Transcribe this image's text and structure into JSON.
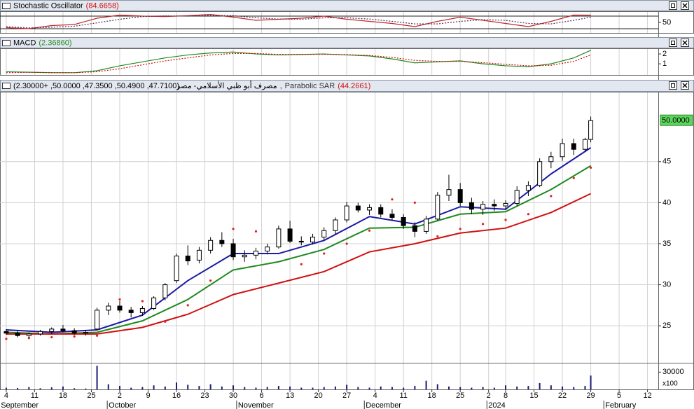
{
  "chart_data": [
    {
      "type": "line",
      "title": "Stochastic Oscillator",
      "value_label": "(84.6658)",
      "xlim": [
        -1.1,
        114.9
      ],
      "ylim": [
        0,
        100
      ],
      "yticks": [
        50
      ],
      "levels": [
        20,
        80
      ],
      "grid": true,
      "x": [
        0,
        4,
        8,
        12,
        16,
        20,
        24,
        28,
        32,
        36,
        40,
        44,
        48,
        52,
        56,
        60,
        64,
        68,
        72,
        76,
        80,
        84,
        88,
        92,
        96,
        100,
        103
      ],
      "series": [
        {
          "color": "#c02828",
          "style": "solid",
          "values": [
            25,
            20,
            35,
            40,
            70,
            85,
            80,
            78,
            82,
            88,
            75,
            60,
            65,
            70,
            80,
            65,
            55,
            45,
            30,
            55,
            75,
            60,
            45,
            30,
            55,
            85,
            84.6658
          ]
        },
        {
          "color": "#5a2a5a",
          "style": "dotted",
          "values": [
            30,
            24,
            27,
            32,
            48,
            65,
            78,
            81,
            80,
            84,
            82,
            72,
            66,
            65,
            72,
            72,
            66,
            55,
            43,
            43,
            55,
            63,
            60,
            45,
            43,
            60,
            75
          ]
        }
      ]
    },
    {
      "type": "line",
      "title": "MACD",
      "value_label": "(2.36860)",
      "xlim": [
        -1.1,
        114.9
      ],
      "ylim": [
        -0.125,
        2.5
      ],
      "yticks": [
        1,
        2
      ],
      "grid": true,
      "x": [
        0,
        4,
        8,
        12,
        16,
        20,
        24,
        28,
        32,
        36,
        40,
        44,
        48,
        52,
        56,
        60,
        64,
        68,
        72,
        76,
        80,
        84,
        88,
        92,
        96,
        100,
        103
      ],
      "series": [
        {
          "color": "#1f8a1f",
          "style": "solid",
          "values": [
            0.2,
            0.15,
            0.1,
            0.1,
            0.3,
            0.8,
            1.2,
            1.6,
            1.9,
            2.1,
            2.2,
            2.0,
            1.9,
            1.95,
            2.0,
            1.9,
            1.8,
            1.5,
            1.1,
            1.2,
            1.3,
            1.0,
            0.8,
            0.7,
            1.0,
            1.6,
            2.3686
          ]
        },
        {
          "color": "#d01010",
          "style": "dotted",
          "values": [
            0.1,
            0.15,
            0.12,
            0.1,
            0.2,
            0.5,
            0.9,
            1.3,
            1.6,
            1.9,
            2.05,
            2.05,
            1.95,
            1.95,
            1.97,
            1.93,
            1.85,
            1.65,
            1.35,
            1.25,
            1.25,
            1.12,
            0.95,
            0.8,
            0.85,
            1.25,
            1.9
          ]
        }
      ]
    },
    {
      "type": "candlestick",
      "title": "مصرف أبو ظبي الأسلامي- مصر",
      "value_label": "(47.7100, 50.4900, 47.3500, 50.0000, +2.30000)",
      "separator": ",",
      "xlim": [
        -1.1,
        114.9
      ],
      "ylim": [
        20.49,
        53.43
      ],
      "yticks": [
        25,
        30,
        35,
        40,
        45
      ],
      "grid": true,
      "last_label": {
        "value": 50,
        "label": "50.0000"
      },
      "x": [
        0,
        2,
        4,
        6,
        8,
        10,
        12,
        14,
        16,
        18,
        20,
        22,
        24,
        26,
        28,
        30,
        32,
        34,
        36,
        38,
        40,
        42,
        44,
        46,
        48,
        50,
        52,
        54,
        56,
        58,
        60,
        62,
        64,
        66,
        68,
        70,
        72,
        74,
        76,
        78,
        80,
        82,
        84,
        86,
        88,
        90,
        92,
        94,
        96,
        98,
        100,
        102,
        103
      ],
      "open": [
        24.3,
        24.1,
        23.8,
        24.0,
        24.3,
        24.6,
        24.4,
        24.1,
        24.6,
        26.9,
        27.4,
        26.9,
        26.6,
        27.1,
        28.4,
        30.5,
        33.5,
        33.0,
        34.2,
        35.4,
        35.0,
        33.4,
        33.6,
        34.1,
        34.6,
        36.8,
        35.3,
        35.2,
        35.8,
        36.6,
        37.9,
        39.6,
        39.1,
        39.4,
        38.6,
        38.2,
        37.2,
        36.5,
        38.0,
        40.9,
        41.6,
        40.0,
        39.2,
        39.8,
        39.6,
        39.9,
        41.5,
        42.1,
        45.0,
        45.6,
        47.2,
        46.5,
        47.71
      ],
      "high": [
        24.6,
        24.4,
        24.2,
        24.5,
        24.8,
        25.1,
        24.7,
        24.5,
        27.2,
        27.8,
        28.0,
        27.3,
        27.4,
        28.6,
        30.2,
        33.8,
        34.8,
        34.6,
        35.8,
        36.4,
        35.6,
        34.2,
        34.5,
        35.0,
        37.2,
        37.8,
        35.9,
        36.2,
        37.0,
        38.2,
        40.1,
        40.0,
        39.8,
        39.8,
        39.2,
        38.6,
        37.6,
        38.4,
        41.3,
        43.4,
        42.4,
        40.6,
        40.2,
        40.4,
        40.3,
        42.0,
        42.6,
        45.4,
        46.2,
        47.8,
        47.8,
        47.9,
        50.49
      ],
      "low": [
        23.9,
        23.6,
        23.5,
        23.8,
        24.0,
        24.2,
        23.9,
        23.8,
        24.5,
        26.3,
        26.6,
        26.0,
        26.2,
        26.9,
        28.1,
        30.2,
        32.4,
        32.6,
        33.8,
        34.6,
        33.0,
        32.8,
        33.1,
        33.7,
        34.4,
        35.1,
        34.8,
        34.9,
        35.4,
        36.1,
        37.6,
        38.8,
        38.5,
        38.2,
        37.9,
        36.8,
        35.8,
        36.2,
        37.8,
        40.2,
        39.6,
        38.6,
        38.5,
        39.0,
        39.1,
        39.6,
        40.8,
        41.9,
        44.2,
        45.1,
        45.8,
        46.2,
        47.35
      ],
      "close": [
        24.1,
        23.8,
        24.0,
        24.3,
        24.6,
        24.4,
        24.1,
        24.2,
        26.9,
        27.4,
        26.9,
        26.6,
        27.1,
        28.4,
        30.0,
        33.5,
        32.9,
        34.2,
        35.4,
        35.0,
        33.4,
        33.6,
        34.1,
        34.6,
        36.8,
        35.3,
        35.2,
        35.8,
        36.6,
        37.9,
        39.6,
        39.1,
        39.4,
        38.6,
        38.2,
        37.2,
        36.5,
        38.0,
        40.9,
        41.6,
        40.0,
        39.2,
        39.8,
        39.6,
        39.9,
        41.5,
        42.1,
        45.0,
        45.6,
        47.2,
        46.5,
        47.7,
        50.0
      ],
      "overlays": [
        {
          "color": "#1a1aa6",
          "x": [
            0,
            8,
            16,
            24,
            32,
            40,
            48,
            56,
            64,
            72,
            80,
            88,
            96,
            103
          ],
          "values": [
            24.5,
            24.2,
            24.5,
            26.3,
            30.5,
            33.8,
            33.8,
            35.4,
            38.3,
            37.4,
            39.5,
            39.2,
            43.5,
            46.7
          ]
        },
        {
          "color": "#1f8a1f",
          "x": [
            0,
            8,
            16,
            24,
            32,
            40,
            48,
            56,
            64,
            72,
            80,
            88,
            96,
            103
          ],
          "values": [
            24.2,
            24.0,
            24.2,
            25.6,
            28.2,
            31.8,
            32.8,
            34.3,
            36.9,
            37.0,
            38.6,
            38.9,
            41.6,
            44.5
          ]
        },
        {
          "color": "#d01010",
          "x": [
            0,
            8,
            16,
            24,
            32,
            40,
            48,
            56,
            64,
            72,
            80,
            88,
            96,
            103
          ],
          "values": [
            24.0,
            24.0,
            24.0,
            24.8,
            26.4,
            28.8,
            30.2,
            31.6,
            34.0,
            35.0,
            36.3,
            36.9,
            38.8,
            41.1
          ]
        }
      ],
      "sar": {
        "name": "Parabolic SAR",
        "value_label": "(44.2661)",
        "color": "#e02020",
        "x": [
          0,
          4,
          8,
          12,
          16,
          20,
          24,
          28,
          32,
          36,
          40,
          44,
          48,
          52,
          56,
          60,
          64,
          68,
          72,
          76,
          80,
          84,
          88,
          92,
          96,
          100,
          103
        ],
        "values": [
          23.4,
          23.5,
          23.6,
          23.7,
          23.8,
          28.2,
          28.0,
          25.5,
          27.5,
          30.5,
          36.8,
          36.5,
          36.2,
          32.5,
          33.8,
          35.0,
          36.6,
          40.4,
          40.0,
          35.9,
          36.8,
          37.4,
          37.9,
          38.6,
          40.8,
          43.0,
          44.2661
        ]
      }
    },
    {
      "type": "bar",
      "color": "#1a1a7a",
      "multiplier_label": "x100",
      "xlim": [
        -1.1,
        114.9
      ],
      "ylim": [
        0,
        45000
      ],
      "yticks": [
        30000
      ],
      "grid": true,
      "x": [
        0,
        2,
        4,
        6,
        8,
        10,
        12,
        14,
        16,
        18,
        20,
        22,
        24,
        26,
        28,
        30,
        32,
        34,
        36,
        38,
        40,
        42,
        44,
        46,
        48,
        50,
        52,
        54,
        56,
        58,
        60,
        62,
        64,
        66,
        68,
        70,
        72,
        74,
        76,
        78,
        80,
        82,
        84,
        86,
        88,
        90,
        92,
        94,
        96,
        98,
        100,
        102,
        103
      ],
      "values": [
        3000,
        2500,
        4000,
        2000,
        3500,
        5000,
        2000,
        1500,
        41000,
        9000,
        6000,
        3000,
        4000,
        7000,
        5000,
        12000,
        8000,
        6000,
        9000,
        5000,
        7000,
        4000,
        3000,
        4000,
        6000,
        5000,
        3000,
        3000,
        4000,
        5000,
        8000,
        4000,
        3000,
        5000,
        4000,
        3000,
        6000,
        15000,
        9000,
        5000,
        4000,
        3000,
        4000,
        3000,
        7000,
        5000,
        6000,
        11000,
        7000,
        5000,
        4000,
        6000,
        24000
      ],
      "xticks": [
        {
          "value": 0,
          "label": "4"
        },
        {
          "value": 5,
          "label": "11"
        },
        {
          "value": 10,
          "label": "18"
        },
        {
          "value": 15,
          "label": "25"
        },
        {
          "value": 20,
          "label": "2"
        },
        {
          "value": 25,
          "label": "9"
        },
        {
          "value": 30,
          "label": "16"
        },
        {
          "value": 35,
          "label": "23"
        },
        {
          "value": 40,
          "label": "30"
        },
        {
          "value": 45,
          "label": "6"
        },
        {
          "value": 50,
          "label": "13"
        },
        {
          "value": 55,
          "label": "20"
        },
        {
          "value": 60,
          "label": "27"
        },
        {
          "value": 65,
          "label": "4"
        },
        {
          "value": 70,
          "label": "11"
        },
        {
          "value": 75,
          "label": "18"
        },
        {
          "value": 80,
          "label": "25"
        },
        {
          "value": 85,
          "label": "2"
        },
        {
          "value": 88,
          "label": "8"
        },
        {
          "value": 93,
          "label": "15"
        },
        {
          "value": 98,
          "label": "22"
        },
        {
          "value": 103,
          "label": "29"
        },
        {
          "value": 108,
          "label": "5"
        },
        {
          "value": 113,
          "label": "12"
        }
      ],
      "month_labels": [
        {
          "value": -1.2,
          "label": "September"
        },
        {
          "value": 17.8,
          "label": "October"
        },
        {
          "value": 40.6,
          "label": "November"
        },
        {
          "value": 63.1,
          "label": "December"
        },
        {
          "value": 84.7,
          "label": "2024"
        },
        {
          "value": 105.3,
          "label": "February"
        }
      ]
    }
  ]
}
